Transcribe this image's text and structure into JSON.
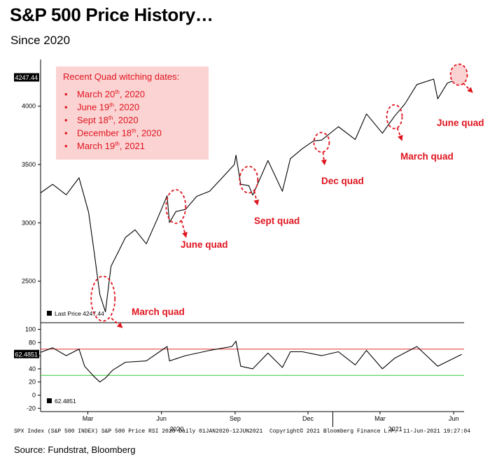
{
  "header": {
    "title": "S&P 500 Price History…",
    "subtitle": "Since 2020"
  },
  "footer": {
    "source": "Source: Fundstrat, Bloomberg",
    "bloomberg_left": "SPX Index (S&P 500 INDEX) S&P 500 Price RSI 2020  Daily 01JAN2020-12JUN2021",
    "bloomberg_mid": "Copyright© 2021 Bloomberg Finance L.P.",
    "bloomberg_right": "11-Jun-2021 19:27:04"
  },
  "quad_box": {
    "heading": "Recent Quad witching dates:",
    "items": [
      {
        "pre": "March 20",
        "sup": "th",
        "post": ", 2020"
      },
      {
        "pre": "June 19",
        "sup": "th",
        "post": ", 2020"
      },
      {
        "pre": "Sept 18",
        "sup": "th",
        "post": ", 2020"
      },
      {
        "pre": "December 18",
        "sup": "th",
        "post": ", 2020"
      },
      {
        "pre": "March 19",
        "sup": "th",
        "post": ", 2021"
      }
    ]
  },
  "colors": {
    "annotation_red": "#e0141e",
    "box_fill": "#fbd3d3",
    "rsi_upper": "#e03030",
    "rsi_lower": "#33cc33",
    "line": "#000000"
  },
  "chart_data": [
    {
      "type": "line",
      "name": "price",
      "ylim": [
        2150,
        4400
      ],
      "yticks": [
        2500,
        3000,
        3500,
        4000
      ],
      "last_price_tag": "4247.44",
      "legend_label": "Last Price",
      "legend_value": "4247.44",
      "x_dates": [
        "2020-01-02",
        "2020-01-17",
        "2020-02-03",
        "2020-02-19",
        "2020-03-02",
        "2020-03-09",
        "2020-03-16",
        "2020-03-23",
        "2020-03-30",
        "2020-04-08",
        "2020-04-17",
        "2020-04-29",
        "2020-05-13",
        "2020-05-27",
        "2020-06-08",
        "2020-06-11",
        "2020-06-19",
        "2020-07-01",
        "2020-07-15",
        "2020-07-31",
        "2020-08-14",
        "2020-08-31",
        "2020-09-02",
        "2020-09-08",
        "2020-09-18",
        "2020-09-23",
        "2020-10-12",
        "2020-10-30",
        "2020-11-09",
        "2020-11-24",
        "2020-12-08",
        "2020-12-18",
        "2021-01-08",
        "2021-01-29",
        "2021-02-12",
        "2021-03-04",
        "2021-03-19",
        "2021-04-01",
        "2021-04-16",
        "2021-05-07",
        "2021-05-12",
        "2021-05-24",
        "2021-06-11"
      ],
      "values": [
        3257,
        3330,
        3240,
        3386,
        3090,
        2746,
        2386,
        2237,
        2627,
        2750,
        2875,
        2940,
        2820,
        3036,
        3232,
        3002,
        3097,
        3115,
        3227,
        3271,
        3373,
        3500,
        3580,
        3331,
        3319,
        3237,
        3534,
        3270,
        3550,
        3636,
        3702,
        3709,
        3824,
        3714,
        3934,
        3768,
        3913,
        4019,
        4185,
        4232,
        4063,
        4197,
        4247
      ]
    },
    {
      "type": "line",
      "name": "rsi",
      "ylim": [
        -25,
        108
      ],
      "yticks": [
        100,
        80,
        60,
        40,
        20,
        0,
        -20
      ],
      "upper_line": 70,
      "lower_line": 30,
      "last_value_tag": "62.4851",
      "legend_value": "62.4851",
      "x_dates": [
        "2020-01-02",
        "2020-01-17",
        "2020-02-03",
        "2020-02-19",
        "2020-02-26",
        "2020-03-09",
        "2020-03-16",
        "2020-03-23",
        "2020-04-01",
        "2020-04-17",
        "2020-05-13",
        "2020-06-08",
        "2020-06-11",
        "2020-07-01",
        "2020-07-31",
        "2020-08-28",
        "2020-09-02",
        "2020-09-08",
        "2020-09-23",
        "2020-10-12",
        "2020-10-30",
        "2020-11-09",
        "2020-11-24",
        "2020-12-18",
        "2021-01-08",
        "2021-01-29",
        "2021-02-12",
        "2021-03-04",
        "2021-03-19",
        "2021-04-16",
        "2021-05-12",
        "2021-06-11"
      ],
      "values": [
        65,
        72,
        60,
        70,
        44,
        28,
        20,
        26,
        38,
        50,
        52,
        74,
        52,
        60,
        68,
        74,
        82,
        44,
        40,
        64,
        42,
        66,
        66,
        60,
        66,
        46,
        68,
        40,
        56,
        74,
        44,
        62
      ]
    }
  ],
  "x_axis": {
    "months": [
      {
        "label": "Mar",
        "date": "2020-03-01"
      },
      {
        "label": "Jun",
        "date": "2020-06-01"
      },
      {
        "label": "Sep",
        "date": "2020-09-01"
      },
      {
        "label": "Dec",
        "date": "2020-12-01"
      },
      {
        "label": "Mar",
        "date": "2021-03-01"
      },
      {
        "label": "Jun",
        "date": "2021-06-01"
      }
    ],
    "years": [
      {
        "label": "2020",
        "date": "2020-06-20"
      },
      {
        "label": "2021",
        "date": "2021-03-20"
      }
    ]
  },
  "annotations": [
    {
      "label": "March quad",
      "date": "2020-03-20",
      "value": 2350
    },
    {
      "label": "June quad",
      "date": "2020-06-19",
      "value": 3140
    },
    {
      "label": "Sept quad",
      "date": "2020-09-18",
      "value": 3370
    },
    {
      "label": "Dec quad",
      "date": "2020-12-18",
      "value": 3690
    },
    {
      "label": "March quad",
      "date": "2021-03-19",
      "value": 3910
    },
    {
      "label": "June quad",
      "date": "2021-06-11",
      "value": 4270
    }
  ]
}
